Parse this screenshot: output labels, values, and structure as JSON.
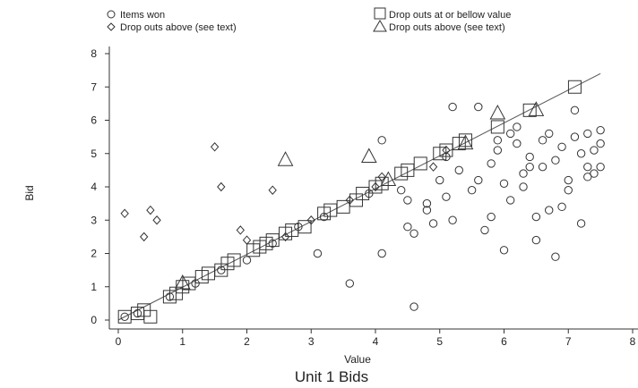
{
  "chart_data": {
    "type": "scatter",
    "title": "Unit 1 Bids",
    "xlabel": "Value",
    "ylabel": "Bid",
    "xlim": [
      0,
      8
    ],
    "ylim": [
      0,
      8
    ],
    "xticks": [
      0,
      1,
      2,
      3,
      4,
      5,
      6,
      7,
      8
    ],
    "yticks": [
      0,
      1,
      2,
      3,
      4,
      5,
      6,
      7,
      8
    ],
    "grid": false,
    "legend_position": "top",
    "reference_line": {
      "from": [
        0,
        0
      ],
      "to": [
        7.5,
        7.4
      ]
    },
    "series": [
      {
        "name": "Items won",
        "marker": "circle",
        "points": [
          [
            0.1,
            0.1
          ],
          [
            0.3,
            0.2
          ],
          [
            0.8,
            0.7
          ],
          [
            1.2,
            1.1
          ],
          [
            1.6,
            1.5
          ],
          [
            2.0,
            1.8
          ],
          [
            2.4,
            2.3
          ],
          [
            2.8,
            2.8
          ],
          [
            3.1,
            2.0
          ],
          [
            3.2,
            3.1
          ],
          [
            3.6,
            1.1
          ],
          [
            3.9,
            3.8
          ],
          [
            4.1,
            2.0
          ],
          [
            4.1,
            5.4
          ],
          [
            4.4,
            3.9
          ],
          [
            4.5,
            3.6
          ],
          [
            4.5,
            2.8
          ],
          [
            4.6,
            0.4
          ],
          [
            4.6,
            2.6
          ],
          [
            4.8,
            3.5
          ],
          [
            4.8,
            3.3
          ],
          [
            4.9,
            2.9
          ],
          [
            5.0,
            4.2
          ],
          [
            5.1,
            3.7
          ],
          [
            5.1,
            4.9
          ],
          [
            5.2,
            6.4
          ],
          [
            5.2,
            3.0
          ],
          [
            5.3,
            4.5
          ],
          [
            5.5,
            3.9
          ],
          [
            5.6,
            4.2
          ],
          [
            5.6,
            6.4
          ],
          [
            5.7,
            2.7
          ],
          [
            5.8,
            3.1
          ],
          [
            5.8,
            4.7
          ],
          [
            5.9,
            5.4
          ],
          [
            6.0,
            2.1
          ],
          [
            6.0,
            4.1
          ],
          [
            6.1,
            3.6
          ],
          [
            6.1,
            5.6
          ],
          [
            6.2,
            5.8
          ],
          [
            6.2,
            5.3
          ],
          [
            6.3,
            4.0
          ],
          [
            6.3,
            4.4
          ],
          [
            6.4,
            4.9
          ],
          [
            6.4,
            4.6
          ],
          [
            6.5,
            3.1
          ],
          [
            6.5,
            2.4
          ],
          [
            6.6,
            5.4
          ],
          [
            6.7,
            3.3
          ],
          [
            6.7,
            5.6
          ],
          [
            6.8,
            4.8
          ],
          [
            6.8,
            1.9
          ],
          [
            6.9,
            3.4
          ],
          [
            6.9,
            5.2
          ],
          [
            7.0,
            3.9
          ],
          [
            7.0,
            4.2
          ],
          [
            7.1,
            6.3
          ],
          [
            7.1,
            5.5
          ],
          [
            7.2,
            5.0
          ],
          [
            7.2,
            2.9
          ],
          [
            7.3,
            4.6
          ],
          [
            7.3,
            4.3
          ],
          [
            7.3,
            5.6
          ],
          [
            7.4,
            4.4
          ],
          [
            7.4,
            5.1
          ],
          [
            7.5,
            4.6
          ],
          [
            7.5,
            5.3
          ],
          [
            7.5,
            5.7
          ],
          [
            6.6,
            4.6
          ],
          [
            5.9,
            5.1
          ]
        ]
      },
      {
        "name": "Drop outs above (see text)",
        "marker": "diamond",
        "points": [
          [
            0.1,
            3.2
          ],
          [
            0.4,
            2.5
          ],
          [
            0.5,
            3.3
          ],
          [
            0.6,
            3.0
          ],
          [
            1.5,
            5.2
          ],
          [
            1.6,
            4.0
          ],
          [
            2.4,
            3.9
          ],
          [
            1.9,
            2.7
          ],
          [
            2.0,
            2.4
          ],
          [
            2.6,
            2.5
          ],
          [
            3.0,
            3.0
          ],
          [
            3.6,
            3.6
          ],
          [
            4.0,
            4.0
          ],
          [
            4.1,
            4.3
          ],
          [
            4.9,
            4.6
          ],
          [
            5.1,
            5.1
          ]
        ]
      },
      {
        "name": "Drop outs at or bellow value",
        "marker": "square",
        "points": [
          [
            0.1,
            0.1
          ],
          [
            0.3,
            0.2
          ],
          [
            0.4,
            0.3
          ],
          [
            0.5,
            0.1
          ],
          [
            0.8,
            0.7
          ],
          [
            0.9,
            0.8
          ],
          [
            1.0,
            1.0
          ],
          [
            1.1,
            1.1
          ],
          [
            1.3,
            1.3
          ],
          [
            1.4,
            1.4
          ],
          [
            1.6,
            1.5
          ],
          [
            1.7,
            1.7
          ],
          [
            1.8,
            1.8
          ],
          [
            2.1,
            2.1
          ],
          [
            2.2,
            2.2
          ],
          [
            2.3,
            2.3
          ],
          [
            2.4,
            2.4
          ],
          [
            2.6,
            2.6
          ],
          [
            2.7,
            2.7
          ],
          [
            2.9,
            2.8
          ],
          [
            3.2,
            3.2
          ],
          [
            3.3,
            3.3
          ],
          [
            3.5,
            3.4
          ],
          [
            3.7,
            3.6
          ],
          [
            3.8,
            3.8
          ],
          [
            4.0,
            4.0
          ],
          [
            4.1,
            4.1
          ],
          [
            4.4,
            4.4
          ],
          [
            4.5,
            4.5
          ],
          [
            4.7,
            4.7
          ],
          [
            5.0,
            5.0
          ],
          [
            5.1,
            5.1
          ],
          [
            5.3,
            5.3
          ],
          [
            5.4,
            5.4
          ],
          [
            5.9,
            5.8
          ],
          [
            6.4,
            6.3
          ],
          [
            7.1,
            7.0
          ]
        ]
      },
      {
        "name": "Drop outs above (see text)",
        "marker": "triangle",
        "points": [
          [
            1.0,
            1.1
          ],
          [
            2.6,
            4.8
          ],
          [
            3.9,
            4.9
          ],
          [
            4.2,
            4.2
          ],
          [
            5.4,
            5.3
          ],
          [
            5.9,
            6.2
          ],
          [
            6.5,
            6.3
          ]
        ]
      }
    ]
  }
}
